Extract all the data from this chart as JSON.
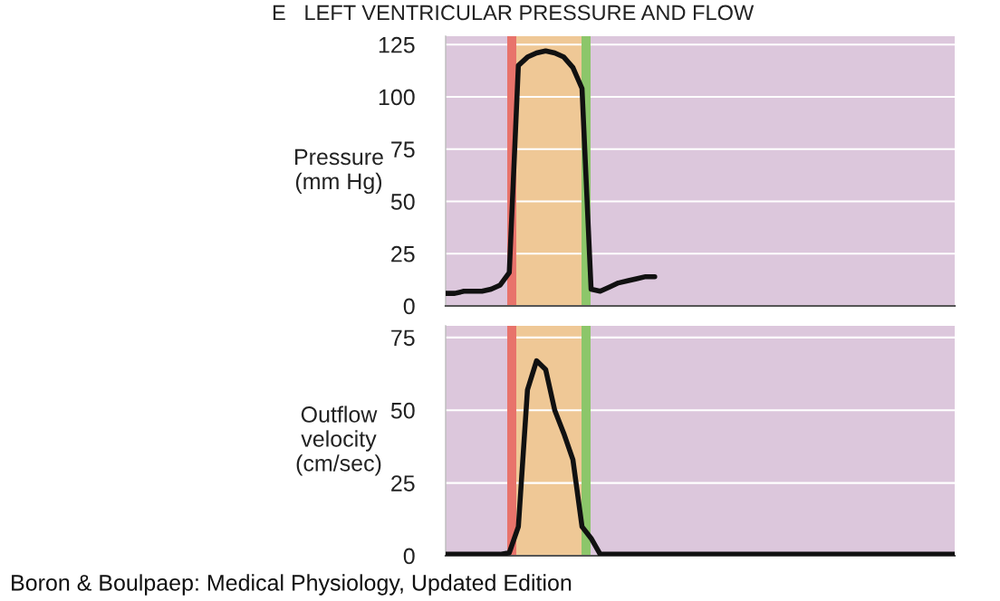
{
  "chart_data": [
    {
      "type": "line",
      "title": "E   LEFT VENTRICULAR PRESSURE AND FLOW",
      "ylabel": "Pressure\n(mm Hg)",
      "categories": [
        null,
        null,
        null,
        null,
        null,
        null,
        null,
        null,
        null,
        null,
        null,
        null,
        null,
        null,
        null,
        null,
        null,
        null,
        null,
        null,
        null,
        null,
        null,
        null,
        null,
        null,
        null,
        null,
        null,
        null,
        null,
        null,
        null,
        null,
        null,
        null,
        null,
        null,
        null,
        null,
        null,
        null,
        null,
        null,
        null,
        null,
        null,
        null,
        null,
        null,
        null,
        null,
        null,
        null,
        null,
        null,
        null
      ],
      "series": [
        {
          "color": "#111111",
          "values": [
            6,
            6,
            7,
            7,
            7,
            8,
            10,
            16,
            115,
            119,
            121,
            122,
            121,
            119,
            114,
            104,
            8,
            7,
            9,
            11,
            12,
            13,
            14,
            14,
            null,
            null,
            null,
            null,
            null,
            null,
            null,
            null,
            null,
            null,
            null,
            null,
            null,
            null,
            null,
            null,
            null,
            null,
            null,
            null,
            null,
            null,
            null,
            null,
            null,
            null,
            null,
            null,
            null,
            null,
            null,
            null,
            null
          ]
        }
      ],
      "ylim": [
        0,
        129
      ],
      "yticks": [
        0,
        25,
        50,
        75,
        100,
        125
      ],
      "grid": "y",
      "tick_labels": "y"
    },
    {
      "type": "line",
      "ylabel": "Outflow\nvelocity\n(cm/sec)",
      "categories": [
        null,
        null,
        null,
        null,
        null,
        null,
        null,
        null,
        null,
        null,
        null,
        null,
        null,
        null,
        null,
        null,
        null,
        null,
        null,
        null,
        null,
        null,
        null,
        null,
        null,
        null,
        null,
        null,
        null,
        null,
        null,
        null,
        null,
        null,
        null,
        null,
        null,
        null,
        null,
        null,
        null,
        null,
        null,
        null,
        null,
        null,
        null,
        null,
        null,
        null,
        null,
        null,
        null,
        null,
        null,
        null,
        null
      ],
      "series": [
        {
          "color": "#111111",
          "values": [
            0.5,
            0.5,
            0.5,
            0.5,
            0.5,
            0.5,
            0.5,
            1,
            10,
            57,
            67,
            64,
            50,
            42,
            33,
            10,
            6,
            0.5,
            0.5,
            0.5,
            0.5,
            0.5,
            0.5,
            0.5,
            0.5,
            0.5,
            0.5,
            0.5,
            0.5,
            0.5,
            0.5,
            0.5,
            0.5,
            0.5,
            0.5,
            0.5,
            0.5,
            0.5,
            0.5,
            0.5,
            0.5,
            0.5,
            0.5,
            0.5,
            0.5,
            0.5,
            0.5,
            0.5,
            0.5,
            0.5,
            0.5,
            0.5,
            0.5,
            0.5,
            0.5,
            0.5,
            0.5
          ]
        }
      ],
      "ylim": [
        0,
        79
      ],
      "yticks": [
        0,
        25,
        50,
        75
      ],
      "grid": "y",
      "tick_labels": "y",
      "annotations": [
        "Boron & Boulpaep: Medical Physiology, Updated Edition"
      ]
    }
  ]
}
